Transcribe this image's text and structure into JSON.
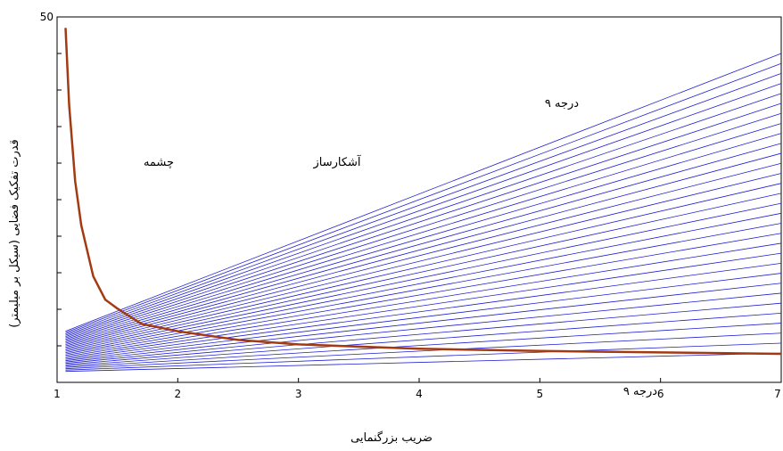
{
  "chart_data": {
    "type": "line",
    "title": "",
    "xlabel": "ضریب بزرگنمایی",
    "ylabel": "قدرت تفکیک فضایی (سیکل بر میلیمتر)",
    "xlim": [
      1,
      7
    ],
    "ylim": [
      0,
      50
    ],
    "xticks": [
      "1",
      "2",
      "3",
      "4",
      "5",
      "6",
      "7"
    ],
    "yticks": [
      "50",
      "45",
      "40",
      "35",
      "30",
      "25",
      "20",
      "15",
      "10",
      "5",
      "0"
    ],
    "ytick_labels_visible": [
      "50",
      "",
      "",
      "",
      "",
      "",
      "",
      "",
      "",
      "",
      ""
    ],
    "annotations": [
      "۹ درجه",
      "آشکارساز",
      "چشمه",
      "۹ درجه"
    ],
    "series": [
      {
        "color": "#a33a12",
        "x": [
          1.07,
          1.1,
          1.15,
          1.2,
          1.3,
          1.4,
          1.5,
          1.7,
          2.0,
          2.5,
          3.0,
          4.0,
          5.0,
          6.0,
          7.0
        ],
        "y": [
          48.5,
          38,
          27.5,
          21.5,
          14.5,
          11.3,
          10.1,
          8.0,
          7.0,
          5.8,
          5.2,
          4.6,
          4.3,
          4.1,
          3.9
        ]
      }
    ],
    "detector_lines": {
      "color": "#1f1fd0",
      "count": 31,
      "x_range": [
        1.07,
        7.0
      ],
      "y_at_start_range": [
        1.5,
        7.0
      ],
      "y_at_end_range": [
        4.0,
        45.0
      ]
    }
  }
}
